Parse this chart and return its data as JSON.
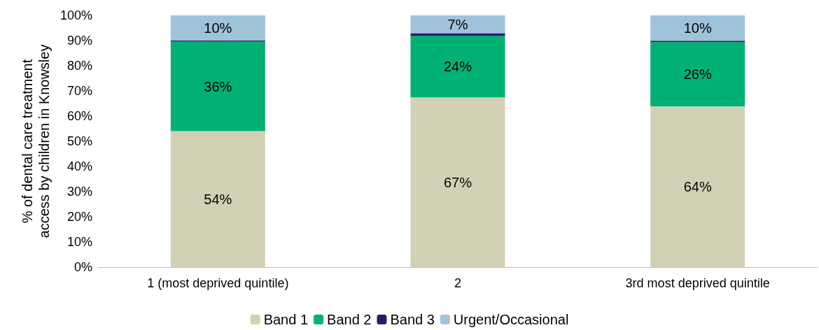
{
  "chart_data": {
    "type": "bar",
    "stacked": true,
    "ylabel": "% of dental care treatment\naccess by children in Knowsley",
    "categories": [
      "1 (most deprived quintile)",
      "2",
      "3rd most deprived quintile"
    ],
    "series": [
      {
        "name": "Band 1",
        "color": "#d3d1b5",
        "values": [
          54,
          67.4,
          63.8
        ],
        "value_labels": [
          "54%",
          "67%",
          "64%"
        ]
      },
      {
        "name": "Band 2",
        "color": "#00b173",
        "values": [
          35.6,
          24.4,
          25.6
        ],
        "value_labels": [
          "36%",
          "24%",
          "26%"
        ]
      },
      {
        "name": "Band 3",
        "color": "#1f1f6b",
        "values": [
          0.5,
          1.1,
          0.5
        ]
      },
      {
        "name": "Urgent/Occasional",
        "color": "#9fc3d9",
        "values": [
          9.9,
          7.1,
          10.1
        ],
        "value_labels": [
          "10%",
          "7%",
          "10%"
        ]
      }
    ],
    "ylim": [
      0,
      100
    ],
    "yticks": [
      {
        "value": 0,
        "label": "0%"
      },
      {
        "value": 10,
        "label": "10%"
      },
      {
        "value": 20,
        "label": "20%"
      },
      {
        "value": 30,
        "label": "30%"
      },
      {
        "value": 40,
        "label": "40%"
      },
      {
        "value": 50,
        "label": "50%"
      },
      {
        "value": 60,
        "label": "60%"
      },
      {
        "value": 70,
        "label": "70%"
      },
      {
        "value": 80,
        "label": "80%"
      },
      {
        "value": 90,
        "label": "90%"
      },
      {
        "value": 100,
        "label": "100%"
      }
    ],
    "grid": false,
    "legend": "bottom"
  }
}
